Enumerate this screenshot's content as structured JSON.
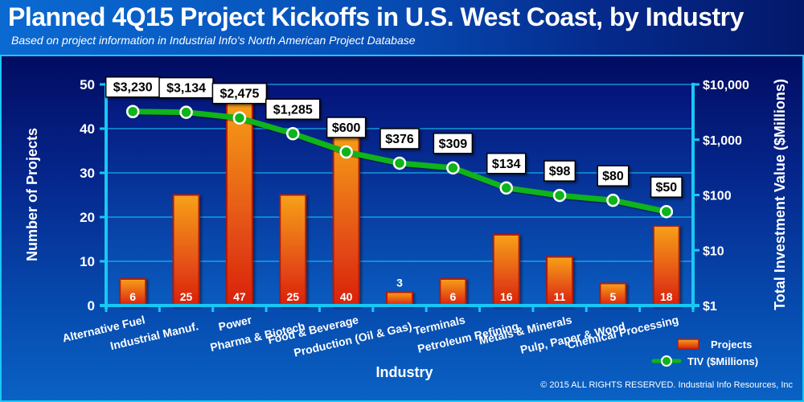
{
  "header": {
    "title": "Planned 4Q15 Project Kickoffs in U.S. West Coast, by Industry",
    "subtitle": "Based on project information in Industrial Info's North American Project Database"
  },
  "footer": {
    "copyright": "© 2015 ALL RIGHTS RESERVED. Industrial Info Resources, Inc"
  },
  "colors": {
    "bar_top": "#f7a11a",
    "bar_bottom": "#d9200f",
    "bar_border": "#b01a0a",
    "line": "#0fb31a",
    "axis": "#18c8f4",
    "label_box": "#ffffff"
  },
  "chart_data": {
    "type": "bar",
    "title": "Planned 4Q15 Project Kickoffs in U.S. West Coast, by Industry",
    "subtitle": "Based on project information in Industrial Info's North American Project Database",
    "xlabel": "Industry",
    "ylabel": "Number of Projects",
    "y2label": "Total Investment Value ($Millions)",
    "ylim": [
      0,
      50
    ],
    "yticks": [
      0,
      10,
      20,
      30,
      40,
      50
    ],
    "y2lim": [
      1,
      10000
    ],
    "y2scale": "log",
    "y2ticks": [
      {
        "value": 1,
        "label": "$1"
      },
      {
        "value": 10,
        "label": "$10"
      },
      {
        "value": 100,
        "label": "$100"
      },
      {
        "value": 1000,
        "label": "$1,000"
      },
      {
        "value": 10000,
        "label": "$10,000"
      }
    ],
    "grid": true,
    "legend_position": "bottom-right",
    "categories": [
      "Alternative Fuel",
      "Industrial Manuf.",
      "Power",
      "Pharma & Biotech",
      "Food & Beverage",
      "Production (Oil & Gas)",
      "Terminals",
      "Petroleum Refining",
      "Metals & Minerals",
      "Pulp, Paper & Wood",
      "Chemical Processing"
    ],
    "series": [
      {
        "name": "Projects",
        "type": "bar",
        "axis": "left",
        "values": [
          6,
          25,
          47,
          25,
          40,
          3,
          6,
          16,
          11,
          5,
          18
        ]
      },
      {
        "name": "TIV ($Millions)",
        "type": "line",
        "axis": "right",
        "values": [
          3230,
          3134,
          2475,
          1285,
          600,
          376,
          309,
          134,
          98,
          80,
          50
        ],
        "labels": [
          "$3,230",
          "$3,134",
          "$2,475",
          "$1,285",
          "$600",
          "$376",
          "$309",
          "$134",
          "$98",
          "$80",
          "$50"
        ]
      }
    ],
    "legend": [
      {
        "name": "Projects",
        "marker": "bar"
      },
      {
        "name": "TIV ($Millions)",
        "marker": "line-dot"
      }
    ]
  }
}
